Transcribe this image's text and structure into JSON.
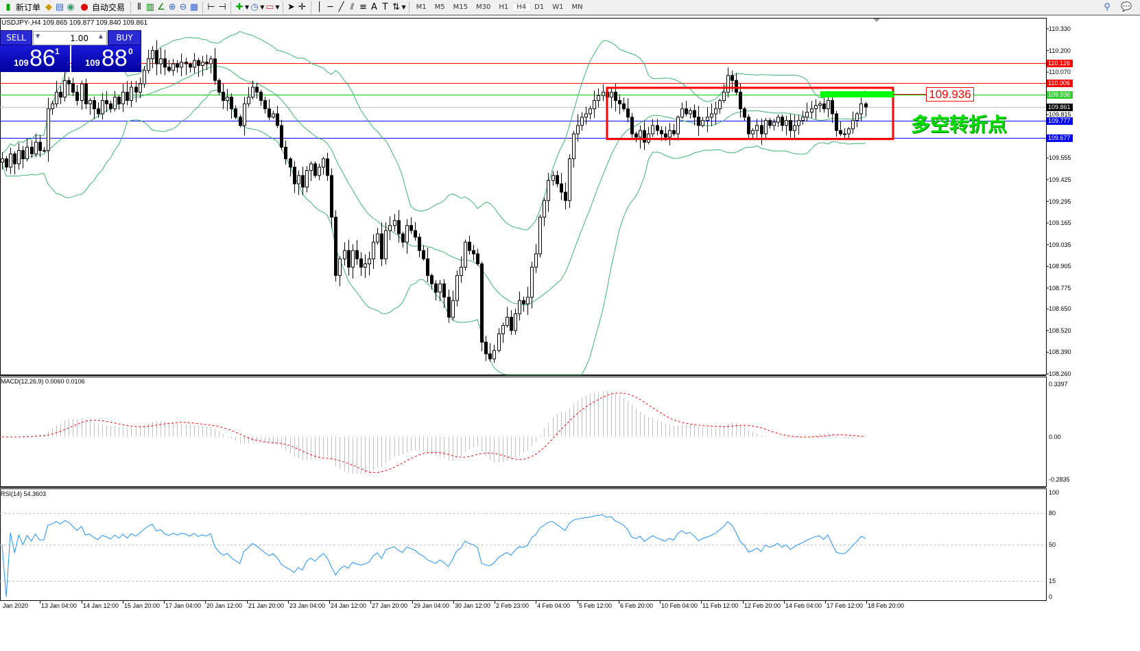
{
  "toolbar": {
    "new_order": "新订单",
    "auto_trading": "自动交易",
    "timeframes": [
      "M1",
      "M5",
      "M15",
      "M30",
      "H1",
      "H4",
      "D1",
      "W1",
      "MN"
    ],
    "active_timeframe": "H4"
  },
  "chart": {
    "title": "USDJPY-,H4  109.865 109.877 109.840 109.861"
  },
  "trade_panel": {
    "sell_label": "SELL",
    "buy_label": "BUY",
    "lot": "1.00",
    "sell_big": "109",
    "sell_digits": "86",
    "sell_sup": "1",
    "buy_big": "109",
    "buy_digits": "88",
    "buy_sup": "0"
  },
  "annotation": {
    "price_box": "109.936",
    "text": "多空转折点",
    "text_color": "#00e000"
  },
  "indicators": {
    "macd_label": "MACD(12,26,9) 0.0060 0.0106",
    "rsi_label": "RSI(14) 54.3603"
  },
  "colors": {
    "bull": "#ffffff",
    "bear": "#000000",
    "bands": "#3cb371",
    "resistance": "#ff0000",
    "pivot": "#00cc00",
    "support": "#0000ff",
    "rsi": "#1e90ff",
    "macd_signal": "#ff0000",
    "macd_hist": "#c0c0c0"
  },
  "chart_data": {
    "type": "candlestick",
    "symbol": "USDJPY-",
    "timeframe": "H4",
    "ylim": [
      108.26,
      110.33
    ],
    "y_ticks": [
      "110.330",
      "110.200",
      "110.070",
      "109.815",
      "109.555",
      "109.425",
      "109.295",
      "109.165",
      "109.035",
      "108.905",
      "108.775",
      "108.650",
      "108.520",
      "108.390",
      "108.260"
    ],
    "x_ticks": [
      "Jan 2020",
      "13 Jan 04:00",
      "14 Jan 12:00",
      "15 Jan 20:00",
      "17 Jan 04:00",
      "20 Jan 12:00",
      "21 Jan 20:00",
      "23 Jan 04:00",
      "24 Jan 12:00",
      "27 Jan 20:00",
      "29 Jan 04:00",
      "30 Jan 12:00",
      "2 Feb 23:00",
      "4 Feb 04:00",
      "5 Feb 12:00",
      "6 Feb 20:00",
      "10 Feb 04:00",
      "11 Feb 12:00",
      "12 Feb 20:00",
      "14 Feb 04:00",
      "17 Feb 12:00",
      "18 Feb 20:00"
    ],
    "closes": [
      109.55,
      109.5,
      109.58,
      109.52,
      109.6,
      109.55,
      109.62,
      109.58,
      109.65,
      109.6,
      109.6,
      109.85,
      109.88,
      109.95,
      109.92,
      110.02,
      110.0,
      109.95,
      109.9,
      110.0,
      109.88,
      109.9,
      109.85,
      109.82,
      109.9,
      109.88,
      109.85,
      109.92,
      109.88,
      109.95,
      109.9,
      109.98,
      109.95,
      110.0,
      110.08,
      110.15,
      110.2,
      110.12,
      110.15,
      110.1,
      110.08,
      110.12,
      110.1,
      110.13,
      110.12,
      110.1,
      110.14,
      110.11,
      110.13,
      110.12,
      110.15,
      110.02,
      109.95,
      109.9,
      109.92,
      109.85,
      109.8,
      109.75,
      109.88,
      109.92,
      109.98,
      109.95,
      109.9,
      109.85,
      109.8,
      109.82,
      109.75,
      109.62,
      109.55,
      109.5,
      109.4,
      109.45,
      109.38,
      109.48,
      109.52,
      109.45,
      109.5,
      109.55,
      109.45,
      109.2,
      108.85,
      108.95,
      109.0,
      108.9,
      109.0,
      108.95,
      108.9,
      108.92,
      108.95,
      109.05,
      109.1,
      108.95,
      109.12,
      109.15,
      109.18,
      109.1,
      109.05,
      109.15,
      109.12,
      109.08,
      109.0,
      108.95,
      108.85,
      108.8,
      108.75,
      108.8,
      108.72,
      108.6,
      108.7,
      108.85,
      108.9,
      109.05,
      109.0,
      108.98,
      108.92,
      108.45,
      108.38,
      108.35,
      108.4,
      108.5,
      108.55,
      108.6,
      108.52,
      108.62,
      108.7,
      108.68,
      108.72,
      108.9,
      108.98,
      109.2,
      109.3,
      109.42,
      109.45,
      109.4,
      109.35,
      109.3,
      109.55,
      109.7,
      109.75,
      109.8,
      109.82,
      109.85,
      109.9,
      109.93,
      109.95,
      109.92,
      109.95,
      109.9,
      109.88,
      109.85,
      109.8,
      109.7,
      109.68,
      109.72,
      109.65,
      109.7,
      109.75,
      109.72,
      109.7,
      109.68,
      109.72,
      109.7,
      109.8,
      109.85,
      109.82,
      109.84,
      109.8,
      109.75,
      109.78,
      109.8,
      109.82,
      109.85,
      109.9,
      109.95,
      110.05,
      110.02,
      109.95,
      109.85,
      109.8,
      109.7,
      109.72,
      109.75,
      109.7,
      109.78,
      109.75,
      109.77,
      109.8,
      109.75,
      109.78,
      109.72,
      109.75,
      109.78,
      109.8,
      109.83,
      109.85,
      109.87,
      109.88,
      109.85,
      109.9,
      109.82,
      109.72,
      109.7,
      109.7,
      109.73,
      109.78,
      109.82,
      109.88,
      109.861
    ],
    "horizontal_lines": [
      {
        "price": "110.126",
        "role": "resistance",
        "color": "#ff0000"
      },
      {
        "price": "110.006",
        "role": "resistance",
        "color": "#ff0000"
      },
      {
        "price": "109.936",
        "role": "pivot",
        "color": "#00cc00"
      },
      {
        "price": "109.861",
        "role": "bid",
        "color": "#000000"
      },
      {
        "price": "109.777",
        "role": "support",
        "color": "#0000ff"
      },
      {
        "price": "109.677",
        "role": "support",
        "color": "#0000ff"
      }
    ],
    "range_box": {
      "price_top": 109.935,
      "price_bottom": 109.677,
      "color": "#ff0000"
    },
    "overlays": [
      "Bollinger Bands(20,2)"
    ],
    "macd": {
      "params": [
        12,
        26,
        9
      ],
      "main": 0.006,
      "signal": 0.0106,
      "ylim": [
        -0.2835,
        0.3397
      ],
      "ticks": [
        "0.3397",
        "0.00",
        "-0.2835"
      ]
    },
    "rsi": {
      "period": 14,
      "value": 54.3603,
      "levels": [
        "80",
        "50",
        "15"
      ],
      "ticks": [
        "100",
        "80",
        "50",
        "15",
        "0"
      ]
    }
  }
}
